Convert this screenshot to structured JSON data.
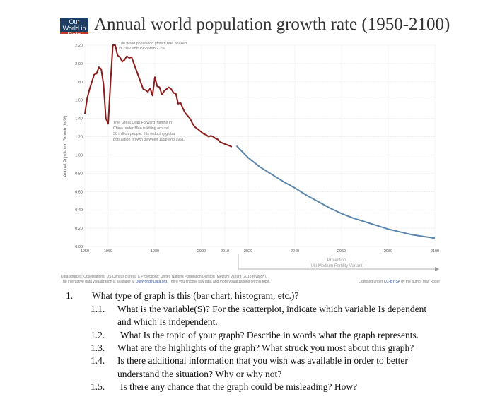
{
  "header": {
    "logo_text": "Our World in Data",
    "title": "Annual world population growth rate (1950-2100)"
  },
  "chart_data": {
    "type": "line",
    "title": "Annual world population growth rate (1950-2100)",
    "ylabel": "Annual Population Growth (in %)",
    "xlabel": "",
    "xlim": [
      1950,
      2100
    ],
    "ylim": [
      0,
      2.2
    ],
    "grid": true,
    "x_ticks": [
      1950,
      1960,
      1980,
      2000,
      2010,
      2020,
      2040,
      2060,
      2080,
      2100
    ],
    "y_ticks": [
      "0.00",
      "0.20",
      "0.40",
      "0.60",
      "0.80",
      "1.00",
      "1.20",
      "1.40",
      "1.60",
      "1.80",
      "2.00",
      "2.20"
    ],
    "colors": {
      "observed": "#8b1a1a",
      "projection": "#5b86ad"
    },
    "series": [
      {
        "x": [
          1950,
          1951,
          1952,
          1953,
          1954,
          1955,
          1956,
          1957,
          1958,
          1959,
          1960,
          1961,
          1962,
          1963,
          1964,
          1965,
          1966,
          1967,
          1968,
          1969,
          1970,
          1971,
          1972,
          1973,
          1974,
          1975,
          1976,
          1977,
          1978,
          1979,
          1980,
          1981,
          1982,
          1983,
          1984,
          1985,
          1986,
          1987,
          1988,
          1989,
          1990,
          1991,
          1992,
          1993,
          1994,
          1995,
          1996,
          1997,
          1998,
          1999,
          2000,
          2001,
          2002,
          2003,
          2004,
          2005,
          2006,
          2007,
          2008,
          2009,
          2010,
          2011,
          2012,
          2013
        ],
        "values": [
          1.45,
          1.62,
          1.72,
          1.8,
          1.88,
          1.89,
          1.96,
          1.94,
          1.77,
          1.4,
          1.34,
          1.8,
          2.2,
          2.2,
          2.09,
          2.07,
          2.02,
          2.04,
          2.08,
          2.06,
          2.07,
          2.0,
          1.93,
          1.86,
          1.79,
          1.72,
          1.71,
          1.69,
          1.73,
          1.65,
          1.85,
          1.75,
          1.74,
          1.66,
          1.7,
          1.72,
          1.74,
          1.72,
          1.68,
          1.67,
          1.56,
          1.57,
          1.51,
          1.46,
          1.43,
          1.4,
          1.35,
          1.31,
          1.29,
          1.27,
          1.25,
          1.23,
          1.22,
          1.2,
          1.21,
          1.2,
          1.18,
          1.17,
          1.14,
          1.13,
          1.12,
          1.11,
          1.1,
          1.09
        ]
      },
      {
        "x": [
          2015,
          2020,
          2025,
          2030,
          2035,
          2040,
          2045,
          2050,
          2055,
          2060,
          2065,
          2070,
          2075,
          2080,
          2085,
          2090,
          2095,
          2100
        ],
        "values": [
          1.1,
          0.97,
          0.87,
          0.79,
          0.71,
          0.64,
          0.56,
          0.49,
          0.42,
          0.36,
          0.31,
          0.27,
          0.23,
          0.19,
          0.16,
          0.13,
          0.11,
          0.09
        ]
      }
    ],
    "annotations": [
      "The world population growth rate peaked in 1962 and 1963 with 2.2%.",
      "The 'Great Leap Forward' famine in China under Mao is killing around 30 million people. It is reducing global population growth between 1958 and 1961."
    ],
    "projection_label": [
      "Projection",
      "(UN Medium Fertility Variant)"
    ]
  },
  "annotation_lines": {
    "peak": [
      "The world population growth rate peaked",
      "in 1962 and 1963 with 2.2%."
    ],
    "famine": [
      "The 'Great Leap Forward' famine in",
      "China under Mao is killing around",
      "30 million people. It is reducing global",
      "population growth between 1958 and 1961."
    ]
  },
  "footer": {
    "sources": "Data sources: Observations: US Census Bureau & Projections: United Nations Population Division (Medium Variant (2015 revision).",
    "interactive_pre": "The interactive data visualization is available at ",
    "interactive_link": "OurWorldinData.org",
    "interactive_post": ". There you find the raw data and more visualizations on this topic.",
    "license_pre": "Licensed under ",
    "license_link": "CC-BY-SA",
    "license_post": " by the author Max Roser"
  },
  "questions": {
    "main_number": "1.",
    "main_text": "What type of graph is this (bar chart, histogram, etc.)?",
    "items": [
      {
        "number": "1.1.",
        "lines": [
          "What is the variable(S)? For the scatterplot, indicate which variable Is dependent",
          "and which Is independent."
        ]
      },
      {
        "number": "1.2.",
        "lines": [
          "What Is the topic of your graph? Describe in words what the graph represents."
        ]
      },
      {
        "number": "1.3.",
        "lines": [
          "What are the highlights of the graph? What struck you most about this graph?"
        ]
      },
      {
        "number": "1.4.",
        "lines": [
          "Is there additional information that you wish was available in order to better",
          "understand the situation? Why or why not?"
        ]
      },
      {
        "number": "1.5.",
        "lines": [
          "Is there any chance that the graph could be misleading? How?"
        ]
      }
    ]
  }
}
